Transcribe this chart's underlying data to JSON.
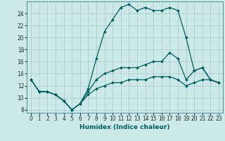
{
  "xlabel": "Humidex (Indice chaleur)",
  "background_color": "#cce8e8",
  "grid_color": "#aacfcf",
  "line_color": "#006060",
  "x_ticks": [
    0,
    1,
    2,
    3,
    4,
    5,
    6,
    7,
    8,
    9,
    10,
    11,
    12,
    13,
    14,
    15,
    16,
    17,
    18,
    19,
    20,
    21,
    22,
    23
  ],
  "y_ticks": [
    8,
    10,
    12,
    14,
    16,
    18,
    20,
    22,
    24
  ],
  "xlim": [
    -0.5,
    23.5
  ],
  "ylim": [
    7.5,
    26.0
  ],
  "line1_y": [
    13,
    11,
    11,
    10.5,
    9.5,
    8,
    9,
    11.5,
    16.5,
    21,
    23,
    25,
    25.5,
    24.5,
    25,
    24.5,
    24.5,
    25,
    24.5,
    20,
    14.5,
    15,
    13,
    12.5
  ],
  "line2_y": [
    13,
    11,
    11,
    10.5,
    9.5,
    8,
    9,
    11,
    13,
    14,
    14.5,
    15,
    15,
    15,
    15.5,
    16,
    16,
    17.5,
    16.5,
    13,
    14.5,
    15,
    13,
    12.5
  ],
  "line3_y": [
    13,
    11,
    11,
    10.5,
    9.5,
    8,
    9,
    10.5,
    11.5,
    12,
    12.5,
    12.5,
    13,
    13,
    13,
    13.5,
    13.5,
    13.5,
    13,
    12,
    12.5,
    13,
    13,
    12.5
  ]
}
